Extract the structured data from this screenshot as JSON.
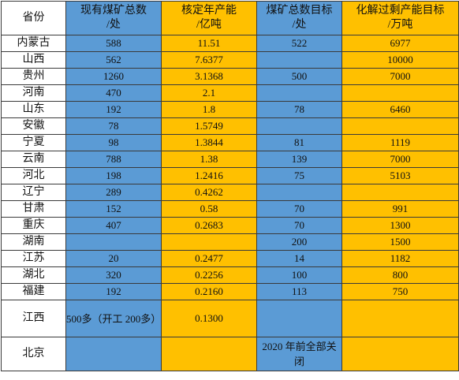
{
  "headers": [
    "省份",
    "现有煤矿总数\n/处",
    "核定年产能\n/亿吨",
    "煤矿总数目标\n/处",
    "化解过剩产能目标\n/万吨"
  ],
  "rows": [
    {
      "province": "内蒙古",
      "mines": "588",
      "capacity": "11.51",
      "target_mines": "522",
      "target_cut": "6977"
    },
    {
      "province": "山西",
      "mines": "562",
      "capacity": "7.6377",
      "target_mines": "",
      "target_cut": "10000"
    },
    {
      "province": "贵州",
      "mines": "1260",
      "capacity": "3.1368",
      "target_mines": "500",
      "target_cut": "7000"
    },
    {
      "province": "河南",
      "mines": "470",
      "capacity": "2.1",
      "target_mines": "",
      "target_cut": ""
    },
    {
      "province": "山东",
      "mines": "192",
      "capacity": "1.8",
      "target_mines": "78",
      "target_cut": "6460"
    },
    {
      "province": "安徽",
      "mines": "78",
      "capacity": "1.5749",
      "target_mines": "",
      "target_cut": ""
    },
    {
      "province": "宁夏",
      "mines": "98",
      "capacity": "1.3844",
      "target_mines": "81",
      "target_cut": "1119"
    },
    {
      "province": "云南",
      "mines": "788",
      "capacity": "1.38",
      "target_mines": "139",
      "target_cut": "7000"
    },
    {
      "province": "河北",
      "mines": "198",
      "capacity": "1.2416",
      "target_mines": "75",
      "target_cut": "5103"
    },
    {
      "province": "辽宁",
      "mines": "289",
      "capacity": "0.4262",
      "target_mines": "",
      "target_cut": ""
    },
    {
      "province": "甘肃",
      "mines": "152",
      "capacity": "0.58",
      "target_mines": "70",
      "target_cut": "991"
    },
    {
      "province": "重庆",
      "mines": "407",
      "capacity": "0.2683",
      "target_mines": "70",
      "target_cut": "1300"
    },
    {
      "province": "湖南",
      "mines": "",
      "capacity": "",
      "target_mines": "200",
      "target_cut": "1500"
    },
    {
      "province": "江苏",
      "mines": "20",
      "capacity": "0.2477",
      "target_mines": "14",
      "target_cut": "1182"
    },
    {
      "province": "湖北",
      "mines": "320",
      "capacity": "0.2256",
      "target_mines": "100",
      "target_cut": "800"
    },
    {
      "province": "福建",
      "mines": "192",
      "capacity": "0.2160",
      "target_mines": "113",
      "target_cut": "750"
    },
    {
      "province": "江西",
      "mines": "500多（开工 200多）",
      "capacity": "0.1300",
      "target_mines": "",
      "target_cut": ""
    },
    {
      "province": "北京",
      "mines": "",
      "capacity": "",
      "target_mines": "2020 年前全部关闭",
      "target_cut": ""
    }
  ],
  "colors": {
    "blue": "#5b9bd5",
    "orange": "#ffc000"
  }
}
